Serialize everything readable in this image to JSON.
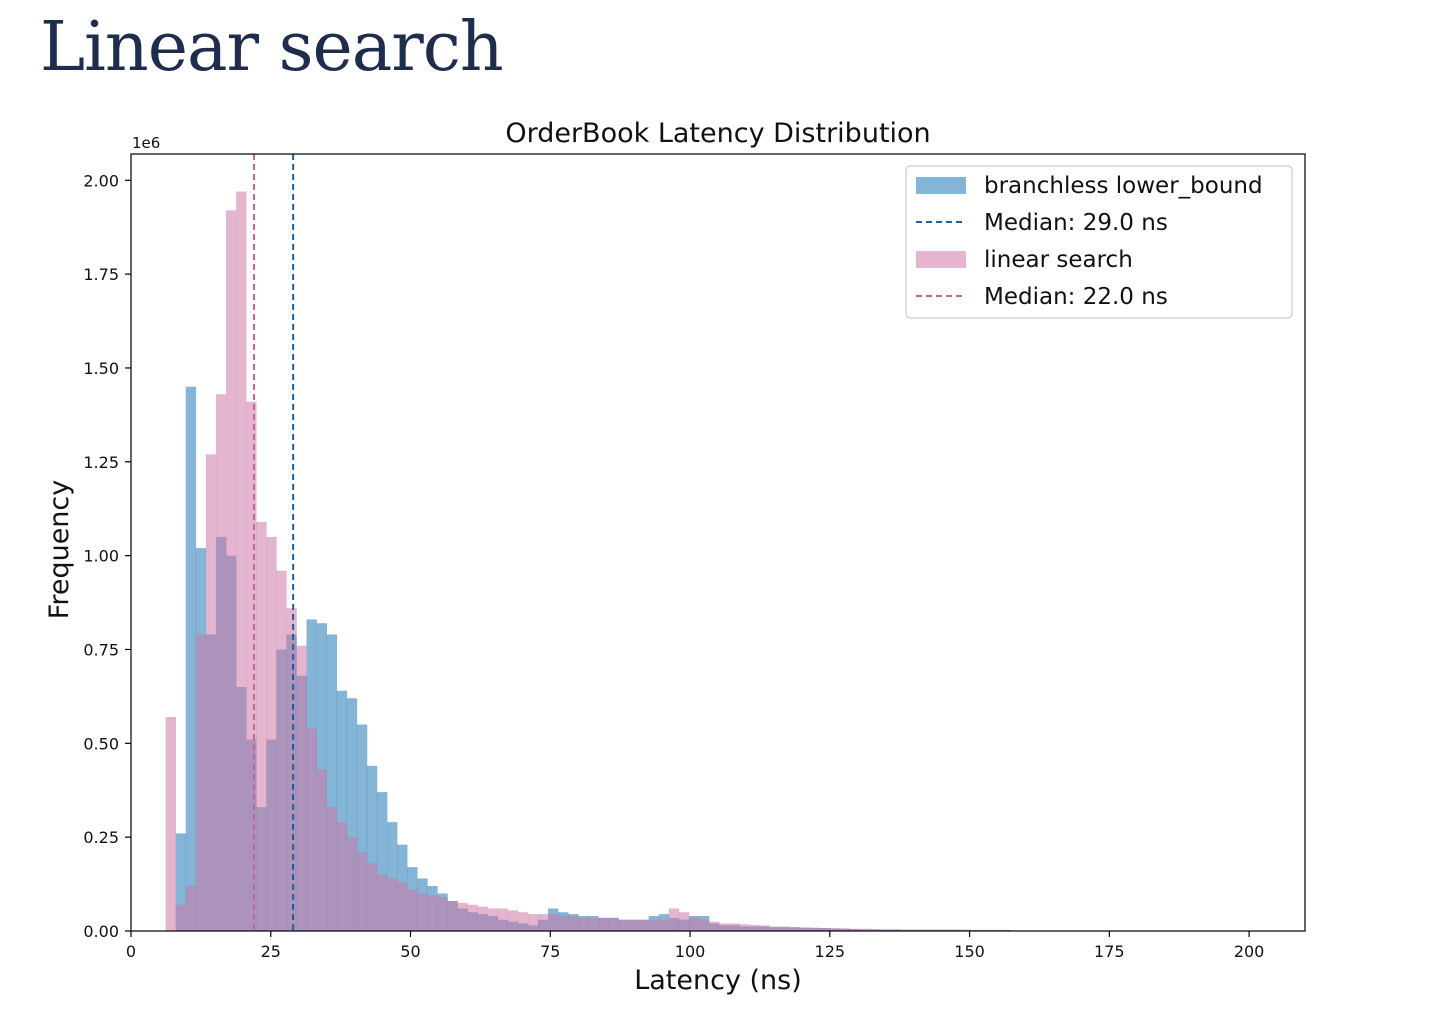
{
  "page": {
    "title": "Linear search"
  },
  "chart_data": {
    "type": "bar",
    "title": "OrderBook Latency Distribution",
    "xlabel": "Latency (ns)",
    "ylabel": "Frequency",
    "y_scale_label": "1e6",
    "xlim": [
      0,
      210
    ],
    "ylim": [
      0,
      2.07
    ],
    "x_ticks": [
      0,
      25,
      50,
      75,
      100,
      125,
      150,
      175,
      200
    ],
    "x_tick_labels": [
      "0",
      "25",
      "50",
      "75",
      "100",
      "125",
      "150",
      "175",
      "200"
    ],
    "y_ticks": [
      0,
      0.25,
      0.5,
      0.75,
      1.0,
      1.25,
      1.5,
      1.75,
      2.0
    ],
    "y_tick_labels": [
      "0.00",
      "0.25",
      "0.50",
      "0.75",
      "1.00",
      "1.25",
      "1.50",
      "1.75",
      "2.00"
    ],
    "grid": false,
    "legend_position": "top-right",
    "bin_width": 1.8,
    "series": [
      {
        "name": "branchless lower_bound",
        "color": "#1f77b4",
        "bins": [
          [
            8,
            0.26
          ],
          [
            9.8,
            1.45
          ],
          [
            11.6,
            1.02
          ],
          [
            13.4,
            0.79
          ],
          [
            15.2,
            1.05
          ],
          [
            17,
            1.0
          ],
          [
            18.8,
            0.65
          ],
          [
            20.6,
            0.51
          ],
          [
            22.4,
            0.33
          ],
          [
            24.2,
            0.51
          ],
          [
            26,
            0.75
          ],
          [
            27.8,
            0.79
          ],
          [
            29.6,
            0.68
          ],
          [
            31.4,
            0.83
          ],
          [
            33.2,
            0.82
          ],
          [
            35,
            0.79
          ],
          [
            36.8,
            0.64
          ],
          [
            38.6,
            0.62
          ],
          [
            40.4,
            0.55
          ],
          [
            42.2,
            0.44
          ],
          [
            44,
            0.37
          ],
          [
            45.8,
            0.29
          ],
          [
            47.6,
            0.23
          ],
          [
            49.4,
            0.17
          ],
          [
            51.2,
            0.14
          ],
          [
            53,
            0.12
          ],
          [
            54.8,
            0.1
          ],
          [
            56.6,
            0.08
          ],
          [
            58.4,
            0.06
          ],
          [
            60.2,
            0.05
          ],
          [
            62,
            0.045
          ],
          [
            63.8,
            0.04
          ],
          [
            65.6,
            0.03
          ],
          [
            67.4,
            0.025
          ],
          [
            69.2,
            0.02
          ],
          [
            71,
            0.015
          ],
          [
            72.8,
            0.03
          ],
          [
            74.6,
            0.06
          ],
          [
            76.4,
            0.05
          ],
          [
            78.2,
            0.045
          ],
          [
            80,
            0.04
          ],
          [
            81.8,
            0.04
          ],
          [
            83.6,
            0.035
          ],
          [
            85.4,
            0.035
          ],
          [
            87.2,
            0.03
          ],
          [
            89,
            0.03
          ],
          [
            90.8,
            0.03
          ],
          [
            92.6,
            0.04
          ],
          [
            94.4,
            0.045
          ],
          [
            96.2,
            0.035
          ],
          [
            98,
            0.03
          ],
          [
            99.8,
            0.04
          ],
          [
            101.6,
            0.04
          ],
          [
            103.4,
            0.02
          ],
          [
            105.2,
            0.015
          ],
          [
            107,
            0.015
          ],
          [
            108.8,
            0.012
          ],
          [
            110.6,
            0.012
          ],
          [
            112.4,
            0.012
          ],
          [
            114.2,
            0.01
          ],
          [
            116,
            0.01
          ],
          [
            117.8,
            0.01
          ],
          [
            119.6,
            0.008
          ],
          [
            121.4,
            0.008
          ],
          [
            123.2,
            0.008
          ],
          [
            125,
            0.006
          ],
          [
            126.8,
            0.006
          ],
          [
            128.6,
            0.005
          ],
          [
            130.4,
            0.004
          ],
          [
            132.2,
            0.004
          ],
          [
            134,
            0.003
          ],
          [
            135.8,
            0.003
          ],
          [
            137.6,
            0.003
          ],
          [
            139.4,
            0.003
          ],
          [
            141.2,
            0.003
          ],
          [
            143,
            0.003
          ],
          [
            144.8,
            0.003
          ],
          [
            146.6,
            0.003
          ],
          [
            148.4,
            0.002
          ],
          [
            150.2,
            0.002
          ],
          [
            152,
            0.002
          ],
          [
            153.8,
            0.002
          ],
          [
            155.6,
            0.002
          ]
        ]
      },
      {
        "name": "linear search",
        "color": "#cc79a7",
        "bins": [
          [
            6.2,
            0.57
          ],
          [
            8,
            0.07
          ],
          [
            9.8,
            0.12
          ],
          [
            11.6,
            0.79
          ],
          [
            13.4,
            1.27
          ],
          [
            15.2,
            1.43
          ],
          [
            17,
            1.92
          ],
          [
            18.8,
            1.97
          ],
          [
            20.6,
            1.41
          ],
          [
            22.4,
            1.09
          ],
          [
            24.2,
            1.05
          ],
          [
            26,
            0.96
          ],
          [
            27.8,
            0.86
          ],
          [
            29.6,
            0.76
          ],
          [
            31.4,
            0.54
          ],
          [
            33.2,
            0.43
          ],
          [
            35,
            0.33
          ],
          [
            36.8,
            0.29
          ],
          [
            38.6,
            0.25
          ],
          [
            40.4,
            0.21
          ],
          [
            42.2,
            0.18
          ],
          [
            44,
            0.15
          ],
          [
            45.8,
            0.14
          ],
          [
            47.6,
            0.13
          ],
          [
            49.4,
            0.11
          ],
          [
            51.2,
            0.1
          ],
          [
            53,
            0.095
          ],
          [
            54.8,
            0.09
          ],
          [
            56.6,
            0.08
          ],
          [
            58.4,
            0.075
          ],
          [
            60.2,
            0.07
          ],
          [
            62,
            0.065
          ],
          [
            63.8,
            0.06
          ],
          [
            65.6,
            0.06
          ],
          [
            67.4,
            0.055
          ],
          [
            69.2,
            0.05
          ],
          [
            71,
            0.045
          ],
          [
            72.8,
            0.045
          ],
          [
            74.6,
            0.045
          ],
          [
            76.4,
            0.04
          ],
          [
            78.2,
            0.04
          ],
          [
            80,
            0.035
          ],
          [
            81.8,
            0.035
          ],
          [
            83.6,
            0.035
          ],
          [
            85.4,
            0.035
          ],
          [
            87.2,
            0.03
          ],
          [
            89,
            0.03
          ],
          [
            90.8,
            0.03
          ],
          [
            92.6,
            0.03
          ],
          [
            94.4,
            0.03
          ],
          [
            96.2,
            0.06
          ],
          [
            98,
            0.05
          ],
          [
            99.8,
            0.035
          ],
          [
            101.6,
            0.03
          ],
          [
            103.4,
            0.025
          ],
          [
            105.2,
            0.02
          ],
          [
            107,
            0.02
          ],
          [
            108.8,
            0.018
          ],
          [
            110.6,
            0.016
          ],
          [
            112.4,
            0.015
          ],
          [
            114.2,
            0.012
          ],
          [
            116,
            0.012
          ],
          [
            117.8,
            0.01
          ],
          [
            119.6,
            0.01
          ],
          [
            121.4,
            0.009
          ],
          [
            123.2,
            0.008
          ],
          [
            125,
            0.008
          ],
          [
            126.8,
            0.007
          ],
          [
            128.6,
            0.006
          ],
          [
            130.4,
            0.006
          ],
          [
            132.2,
            0.005
          ],
          [
            134,
            0.005
          ],
          [
            135.8,
            0.005
          ],
          [
            137.6,
            0.004
          ],
          [
            139.4,
            0.004
          ],
          [
            141.2,
            0.004
          ],
          [
            143,
            0.004
          ],
          [
            144.8,
            0.004
          ],
          [
            146.6,
            0.004
          ],
          [
            148.4,
            0.004
          ],
          [
            150.2,
            0.003
          ],
          [
            152,
            0.003
          ],
          [
            153.8,
            0.003
          ],
          [
            155.6,
            0.003
          ]
        ]
      }
    ],
    "medians": [
      {
        "label": "Median: 29.0 ns",
        "value": 29.0,
        "color": "#1f5f9f"
      },
      {
        "label": "Median: 22.0 ns",
        "value": 22.0,
        "color": "#c2679a"
      }
    ]
  }
}
